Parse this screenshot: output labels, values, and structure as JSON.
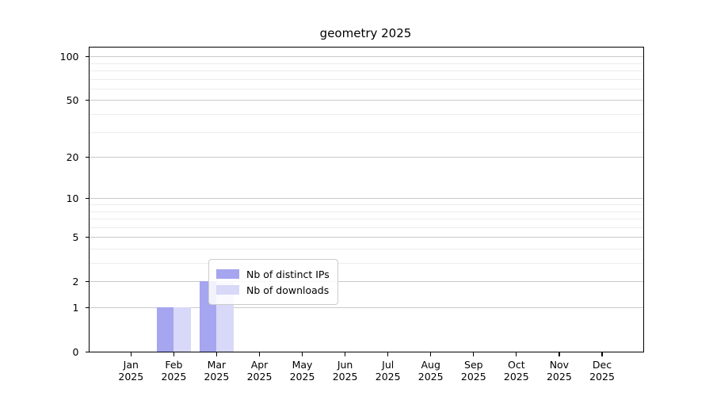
{
  "figure": {
    "background": "#ffffff"
  },
  "chart_data": {
    "type": "bar",
    "title": "geometry 2025",
    "categories": [
      "Jan",
      "Feb",
      "Mar",
      "Apr",
      "May",
      "Jun",
      "Jul",
      "Aug",
      "Sep",
      "Oct",
      "Nov",
      "Dec"
    ],
    "year_label": "2025",
    "series": [
      {
        "name": "Nb of distinct IPs",
        "color": "#a5a5f0",
        "values": [
          0,
          1,
          2,
          0,
          0,
          0,
          0,
          0,
          0,
          0,
          0,
          0
        ]
      },
      {
        "name": "Nb of downloads",
        "color": "#d8d8f8",
        "values": [
          0,
          1,
          2,
          0,
          0,
          0,
          0,
          0,
          0,
          0,
          0,
          0
        ]
      }
    ],
    "yscale": "log1p",
    "ylim": [
      0,
      115
    ],
    "y_major_ticks": [
      0,
      1,
      2,
      5,
      10,
      20,
      50,
      100
    ],
    "y_minor_gridlines": [
      3,
      4,
      6,
      7,
      8,
      9,
      30,
      40,
      60,
      70,
      80,
      90
    ],
    "grid": true,
    "legend_position": "lower center",
    "colors": {
      "major_grid": "#c9c9c9",
      "minor_grid": "#ececec",
      "axis": "#000000",
      "text": "#000000"
    }
  }
}
